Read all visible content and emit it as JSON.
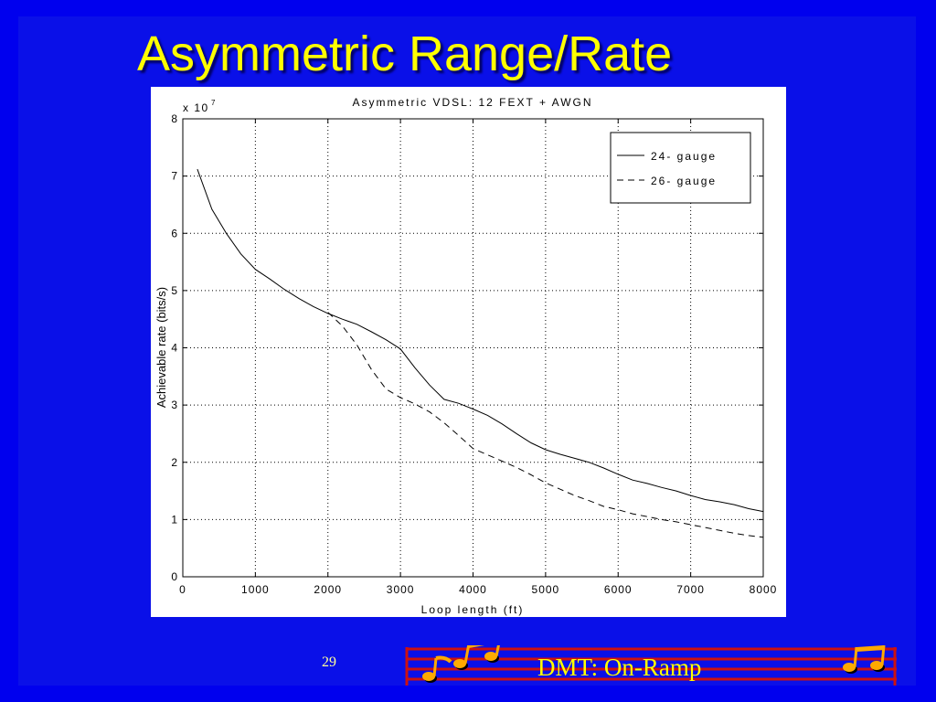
{
  "slide": {
    "title": "Asymmetric Range/Rate",
    "page_number": "29",
    "footer": "DMT: On-Ramp",
    "colors": {
      "background": "#0000ee",
      "title": "#ffff00",
      "footer_staff": "#cc1111",
      "notes": "#ffaa00"
    },
    "footer_decoration": "musical-notes-logo"
  },
  "chart_data": {
    "type": "line",
    "title": "Asymmetric VDSL: 12 FEXT + AWGN",
    "xlabel": "Loop length (ft)",
    "ylabel": "Achievable rate (bits/s)",
    "y_multiplier": "x 10",
    "y_multiplier_exponent": "7",
    "xlim": [
      0,
      8000
    ],
    "ylim": [
      0,
      8
    ],
    "xticks": [
      0,
      1000,
      2000,
      3000,
      4000,
      5000,
      6000,
      7000,
      8000
    ],
    "yticks": [
      0,
      1,
      2,
      3,
      4,
      5,
      6,
      7,
      8
    ],
    "grid": true,
    "legend_position": "top-right",
    "series": [
      {
        "name": "24- gauge",
        "style": "solid",
        "x": [
          200,
          400,
          600,
          800,
          1000,
          1200,
          1400,
          1600,
          1800,
          2000,
          2200,
          2400,
          2600,
          2800,
          3000,
          3200,
          3400,
          3600,
          3800,
          4000,
          4200,
          4400,
          4600,
          4800,
          5000,
          5200,
          5400,
          5600,
          5800,
          6000,
          6200,
          6400,
          6600,
          6800,
          7000,
          7200,
          7400,
          7600,
          7800,
          8000
        ],
        "y": [
          7.12,
          6.42,
          6.0,
          5.64,
          5.37,
          5.2,
          5.02,
          4.86,
          4.72,
          4.6,
          4.5,
          4.41,
          4.28,
          4.14,
          3.98,
          3.65,
          3.35,
          3.1,
          3.03,
          2.93,
          2.82,
          2.67,
          2.5,
          2.34,
          2.22,
          2.14,
          2.07,
          2.0,
          1.9,
          1.79,
          1.69,
          1.63,
          1.56,
          1.5,
          1.42,
          1.35,
          1.31,
          1.26,
          1.19,
          1.14
        ]
      },
      {
        "name": "26- gauge",
        "style": "dashed",
        "x": [
          2000,
          2200,
          2400,
          2600,
          2800,
          3000,
          3200,
          3400,
          3600,
          3800,
          4000,
          4200,
          4400,
          4600,
          4800,
          5000,
          5200,
          5400,
          5600,
          5800,
          6000,
          6200,
          6400,
          6600,
          6800,
          7000,
          7200,
          7400,
          7600,
          7800,
          8000
        ],
        "y": [
          4.62,
          4.38,
          4.05,
          3.62,
          3.28,
          3.13,
          3.02,
          2.88,
          2.69,
          2.47,
          2.24,
          2.13,
          2.02,
          1.91,
          1.78,
          1.64,
          1.53,
          1.42,
          1.33,
          1.23,
          1.17,
          1.1,
          1.05,
          1.0,
          0.96,
          0.91,
          0.86,
          0.81,
          0.76,
          0.72,
          0.69
        ]
      }
    ]
  }
}
